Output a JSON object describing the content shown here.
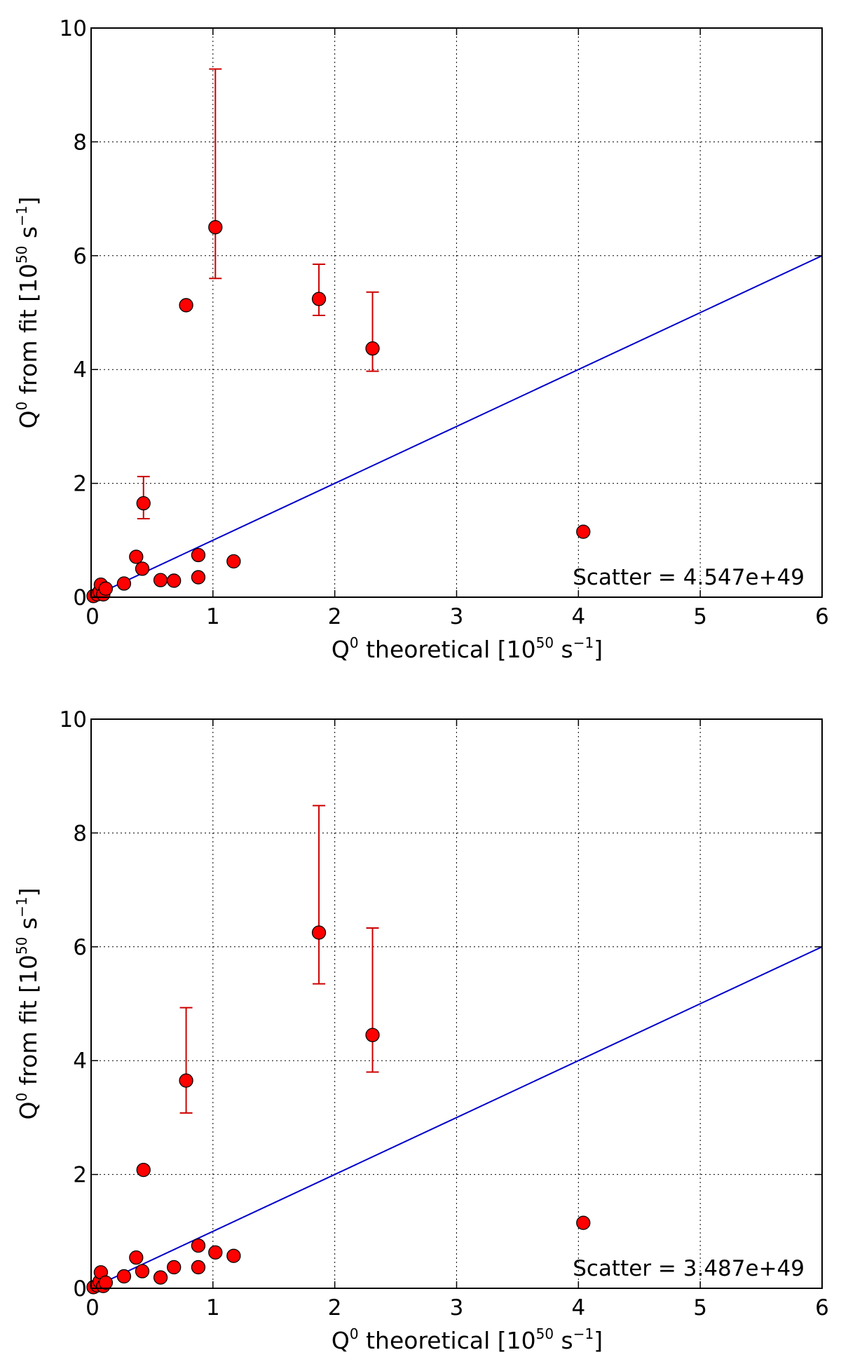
{
  "chart_data": [
    {
      "type": "scatter",
      "xlabel": {
        "pre": "Q",
        "sup1": "0",
        "mid": "  theoretical [10",
        "sup2": "50",
        "unit": " s",
        "sup3": "−1",
        "post": "]"
      },
      "ylabel": {
        "pre": "Q",
        "sup1": "0",
        "mid": "  from fit [10",
        "sup2": "50",
        "unit": " s",
        "sup3": "−1",
        "post": "]"
      },
      "xlim": [
        0,
        6
      ],
      "ylim": [
        0,
        10
      ],
      "xticks": [
        "0",
        "1",
        "2",
        "3",
        "4",
        "5",
        "6"
      ],
      "yticks": [
        "0",
        "2",
        "4",
        "6",
        "8",
        "10"
      ],
      "grid": true,
      "annotation": "Scatter =  4.547e+49",
      "colors": {
        "points": "#ff0000",
        "errorbars": "#cc0000",
        "line": "#0000cc"
      },
      "reference_line": {
        "x": [
          0,
          6
        ],
        "y": [
          0,
          6
        ]
      },
      "points": [
        {
          "x": 0.02,
          "y": 0.02
        },
        {
          "x": 0.05,
          "y": 0.05
        },
        {
          "x": 0.07,
          "y": 0.1
        },
        {
          "x": 0.08,
          "y": 0.22
        },
        {
          "x": 0.1,
          "y": 0.05
        },
        {
          "x": 0.12,
          "y": 0.15
        },
        {
          "x": 0.27,
          "y": 0.24
        },
        {
          "x": 0.37,
          "y": 0.71
        },
        {
          "x": 0.42,
          "y": 0.5
        },
        {
          "x": 0.43,
          "y": 1.65,
          "err_low": 1.38,
          "err_high": 2.12
        },
        {
          "x": 0.57,
          "y": 0.3
        },
        {
          "x": 0.68,
          "y": 0.29
        },
        {
          "x": 0.78,
          "y": 5.13
        },
        {
          "x": 0.88,
          "y": 0.74
        },
        {
          "x": 0.88,
          "y": 0.35
        },
        {
          "x": 1.02,
          "y": 6.5,
          "err_low": 5.6,
          "err_high": 9.28
        },
        {
          "x": 1.17,
          "y": 0.63
        },
        {
          "x": 1.87,
          "y": 5.24,
          "err_low": 4.95,
          "err_high": 5.85
        },
        {
          "x": 2.31,
          "y": 4.37,
          "err_low": 3.97,
          "err_high": 5.36
        },
        {
          "x": 4.04,
          "y": 1.15
        }
      ]
    },
    {
      "type": "scatter",
      "xlabel": {
        "pre": "Q",
        "sup1": "0",
        "mid": "  theoretical [10",
        "sup2": "50",
        "unit": " s",
        "sup3": "−1",
        "post": "]"
      },
      "ylabel": {
        "pre": "Q",
        "sup1": "0",
        "mid": "  from fit [10",
        "sup2": "50",
        "unit": " s",
        "sup3": "−1",
        "post": "]"
      },
      "xlim": [
        0,
        6
      ],
      "ylim": [
        0,
        10
      ],
      "xticks": [
        "0",
        "1",
        "2",
        "3",
        "4",
        "5",
        "6"
      ],
      "yticks": [
        "0",
        "2",
        "4",
        "6",
        "8",
        "10"
      ],
      "grid": true,
      "annotation": "Scatter =  3.487e+49",
      "colors": {
        "points": "#ff0000",
        "errorbars": "#cc0000",
        "line": "#0000cc"
      },
      "reference_line": {
        "x": [
          0,
          6
        ],
        "y": [
          0,
          6
        ]
      },
      "points": [
        {
          "x": 0.02,
          "y": 0.02
        },
        {
          "x": 0.05,
          "y": 0.05
        },
        {
          "x": 0.07,
          "y": 0.12
        },
        {
          "x": 0.08,
          "y": 0.28
        },
        {
          "x": 0.1,
          "y": 0.04
        },
        {
          "x": 0.12,
          "y": 0.1
        },
        {
          "x": 0.27,
          "y": 0.21
        },
        {
          "x": 0.37,
          "y": 0.54
        },
        {
          "x": 0.42,
          "y": 0.3
        },
        {
          "x": 0.43,
          "y": 2.08
        },
        {
          "x": 0.57,
          "y": 0.19
        },
        {
          "x": 0.68,
          "y": 0.37
        },
        {
          "x": 0.78,
          "y": 3.65,
          "err_low": 3.08,
          "err_high": 4.93
        },
        {
          "x": 0.88,
          "y": 0.75
        },
        {
          "x": 0.88,
          "y": 0.37
        },
        {
          "x": 1.02,
          "y": 0.63
        },
        {
          "x": 1.17,
          "y": 0.57
        },
        {
          "x": 1.87,
          "y": 6.25,
          "err_low": 5.35,
          "err_high": 8.48
        },
        {
          "x": 2.31,
          "y": 4.45,
          "err_low": 3.8,
          "err_high": 6.33
        },
        {
          "x": 4.04,
          "y": 1.15
        }
      ]
    }
  ]
}
